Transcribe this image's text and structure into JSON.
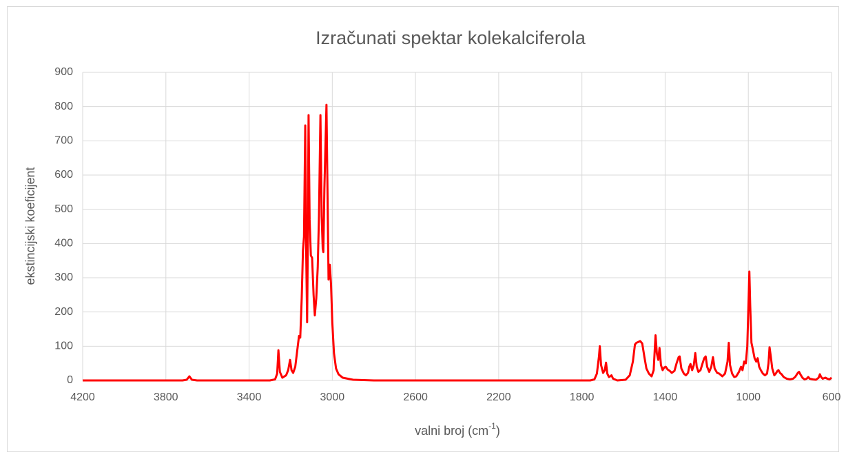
{
  "chart_data": {
    "type": "line",
    "title": "Izračunati spektar kolekalciferola",
    "xlabel": [
      "valni broj (cm",
      "-1",
      ")"
    ],
    "ylabel": "ekstincijski koeficijent",
    "color": "#ff0000",
    "grid": true,
    "xlim": [
      4200,
      600
    ],
    "xticks": [
      4200,
      3800,
      3400,
      3000,
      2600,
      2200,
      1800,
      1400,
      1000,
      600
    ],
    "ylim": [
      0,
      900
    ],
    "yticks": [
      0,
      100,
      200,
      300,
      400,
      500,
      600,
      700,
      800,
      900
    ],
    "x": [
      4200,
      3720,
      3700,
      3687,
      3675,
      3650,
      3300,
      3275,
      3265,
      3259,
      3252,
      3240,
      3222,
      3212,
      3203,
      3196,
      3188,
      3178,
      3168,
      3160,
      3154,
      3147,
      3141,
      3136,
      3130,
      3126,
      3121,
      3118,
      3114,
      3109,
      3103,
      3097,
      3090,
      3084,
      3077,
      3070,
      3064,
      3057,
      3051,
      3046,
      3043,
      3038,
      3028,
      3022,
      3018,
      3012,
      3006,
      3000,
      2992,
      2982,
      2970,
      2950,
      2900,
      2800,
      1760,
      1740,
      1728,
      1718,
      1714,
      1708,
      1698,
      1690,
      1684,
      1678,
      1670,
      1664,
      1658,
      1650,
      1630,
      1590,
      1570,
      1555,
      1545,
      1538,
      1530,
      1520,
      1510,
      1500,
      1490,
      1478,
      1465,
      1455,
      1449,
      1446,
      1440,
      1433,
      1427,
      1420,
      1412,
      1404,
      1397,
      1388,
      1378,
      1368,
      1355,
      1345,
      1335,
      1330,
      1322,
      1310,
      1300,
      1290,
      1284,
      1278,
      1270,
      1262,
      1255,
      1248,
      1240,
      1230,
      1220,
      1212,
      1205,
      1198,
      1188,
      1178,
      1170,
      1162,
      1150,
      1140,
      1125,
      1112,
      1100,
      1094,
      1088,
      1078,
      1068,
      1058,
      1045,
      1035,
      1028,
      1020,
      1012,
      1005,
      998,
      995,
      991,
      985,
      978,
      970,
      962,
      955,
      948,
      940,
      930,
      920,
      910,
      903,
      898,
      892,
      885,
      875,
      868,
      860,
      855,
      848,
      840,
      830,
      815,
      800,
      785,
      775,
      762,
      756,
      750,
      740,
      730,
      720,
      712,
      705,
      690,
      675,
      662,
      656,
      650,
      642,
      630,
      620,
      610,
      600
    ],
    "values": [
      0,
      0,
      2,
      12,
      2,
      0,
      0,
      3,
      20,
      88,
      25,
      8,
      15,
      30,
      60,
      30,
      22,
      40,
      90,
      130,
      125,
      240,
      380,
      420,
      745,
      400,
      170,
      380,
      775,
      470,
      365,
      358,
      250,
      190,
      240,
      330,
      480,
      775,
      480,
      385,
      375,
      560,
      805,
      500,
      295,
      338,
      280,
      170,
      80,
      35,
      18,
      8,
      2,
      0,
      0,
      3,
      20,
      70,
      100,
      45,
      22,
      30,
      52,
      20,
      10,
      12,
      15,
      5,
      0,
      2,
      15,
      55,
      105,
      110,
      112,
      115,
      108,
      70,
      35,
      20,
      12,
      30,
      100,
      132,
      80,
      60,
      95,
      45,
      30,
      38,
      40,
      32,
      28,
      22,
      28,
      50,
      68,
      70,
      35,
      20,
      15,
      22,
      40,
      48,
      30,
      45,
      80,
      40,
      25,
      30,
      50,
      65,
      70,
      40,
      25,
      40,
      68,
      35,
      22,
      20,
      12,
      20,
      55,
      110,
      45,
      20,
      10,
      12,
      25,
      40,
      30,
      55,
      50,
      100,
      250,
      318,
      220,
      110,
      90,
      65,
      55,
      65,
      40,
      30,
      20,
      15,
      20,
      50,
      97,
      70,
      35,
      15,
      20,
      28,
      30,
      22,
      18,
      10,
      5,
      3,
      5,
      10,
      22,
      25,
      18,
      8,
      3,
      5,
      10,
      5,
      3,
      2,
      8,
      18,
      10,
      5,
      8,
      5,
      3,
      8
    ]
  }
}
